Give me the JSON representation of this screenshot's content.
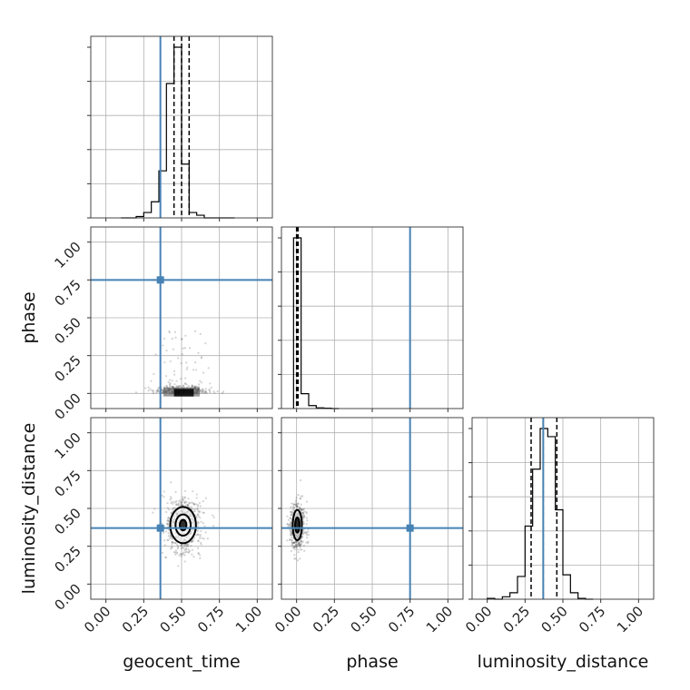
{
  "chart_data": {
    "type": "corner",
    "parameters": [
      "geocent_time",
      "phase",
      "luminosity_distance"
    ],
    "axis_range": [
      -0.1,
      1.1
    ],
    "ticks": [
      0.0,
      0.25,
      0.5,
      0.75,
      1.0
    ],
    "tick_labels": [
      "0.00",
      "0.25",
      "0.50",
      "0.75",
      "1.00"
    ],
    "truths": {
      "geocent_time": 0.36,
      "phase": 0.75,
      "luminosity_distance": 0.37
    },
    "quantiles": {
      "geocent_time": [
        0.45,
        0.5,
        0.55
      ],
      "phase": [
        0.0,
        0.005,
        0.01
      ],
      "luminosity_distance": [
        0.29,
        0.37,
        0.46
      ]
    },
    "histograms": {
      "geocent_time": {
        "bin_edges": [
          0.1,
          0.15,
          0.2,
          0.25,
          0.3,
          0.35,
          0.4,
          0.45,
          0.5,
          0.55,
          0.6,
          0.65,
          0.7,
          0.75,
          0.8,
          0.85
        ],
        "counts": [
          0,
          0,
          1,
          4,
          12,
          35,
          100,
          127,
          40,
          4,
          2,
          0,
          0,
          0,
          0
        ]
      },
      "phase": {
        "bin_edges": [
          -0.02,
          0.03,
          0.08,
          0.13,
          0.18,
          0.23,
          0.28
        ],
        "counts": [
          460,
          40,
          8,
          2,
          1,
          0
        ]
      },
      "luminosity_distance": {
        "bin_edges": [
          0.0,
          0.05,
          0.1,
          0.15,
          0.2,
          0.25,
          0.3,
          0.35,
          0.4,
          0.45,
          0.5,
          0.55,
          0.6,
          0.65,
          0.7
        ],
        "counts": [
          1,
          0,
          3,
          8,
          28,
          90,
          160,
          210,
          200,
          110,
          30,
          8,
          1,
          0
        ]
      }
    },
    "contours": {
      "geocent_time|luminosity_distance": {
        "center": [
          0.51,
          0.39
        ],
        "levels": [
          {
            "rx": 0.085,
            "ry": 0.12
          },
          {
            "rx": 0.05,
            "ry": 0.07
          },
          {
            "rx": 0.022,
            "ry": 0.035
          }
        ]
      },
      "phase|luminosity_distance": {
        "center": [
          0.005,
          0.39
        ],
        "levels": [
          {
            "rx": 0.03,
            "ry": 0.1
          },
          {
            "rx": 0.015,
            "ry": 0.05
          }
        ]
      }
    },
    "scatter_spread": {
      "geocent_time|phase": {
        "center": [
          0.5,
          0.02
        ],
        "sx": 0.09,
        "sy": 0.05,
        "n": 420
      },
      "geocent_time|luminosity_distance": {
        "center": [
          0.51,
          0.39
        ],
        "sx": 0.06,
        "sy": 0.09,
        "n": 650
      },
      "phase|luminosity_distance": {
        "center": [
          0.005,
          0.38
        ],
        "sx": 0.025,
        "sy": 0.08,
        "n": 520
      }
    },
    "colors": {
      "truth": "#4682b4",
      "line": "#000000",
      "grid": "#b0b0b0",
      "points": "#555555"
    },
    "grid": true
  }
}
